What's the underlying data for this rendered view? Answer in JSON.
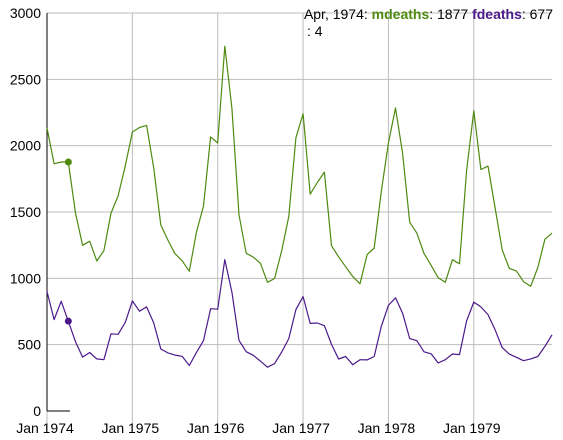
{
  "legend": {
    "date": "Apr, 1974",
    "mdeaths_label": "mdeaths",
    "mdeaths_value": "1877",
    "fdeaths_label": "fdeaths",
    "fdeaths_value": "677",
    "extra_label": ": 4"
  },
  "chart_data": {
    "type": "line",
    "title": "",
    "xlabel": "",
    "ylabel": "",
    "ylim": [
      0,
      3000
    ],
    "xlim": [
      "1974-01",
      "1979-12"
    ],
    "grid": true,
    "x_tick_labels": [
      "Jan 1974",
      "Jan 1975",
      "Jan 1976",
      "Jan 1977",
      "Jan 1978",
      "Jan 1979"
    ],
    "y_tick_labels": [
      "0",
      "500",
      "1000",
      "1500",
      "2000",
      "2500",
      "3000"
    ],
    "x": [
      "1974-01",
      "1974-02",
      "1974-03",
      "1974-04",
      "1974-05",
      "1974-06",
      "1974-07",
      "1974-08",
      "1974-09",
      "1974-10",
      "1974-11",
      "1974-12",
      "1975-01",
      "1975-02",
      "1975-03",
      "1975-04",
      "1975-05",
      "1975-06",
      "1975-07",
      "1975-08",
      "1975-09",
      "1975-10",
      "1975-11",
      "1975-12",
      "1976-01",
      "1976-02",
      "1976-03",
      "1976-04",
      "1976-05",
      "1976-06",
      "1976-07",
      "1976-08",
      "1976-09",
      "1976-10",
      "1976-11",
      "1976-12",
      "1977-01",
      "1977-02",
      "1977-03",
      "1977-04",
      "1977-05",
      "1977-06",
      "1977-07",
      "1977-08",
      "1977-09",
      "1977-10",
      "1977-11",
      "1977-12",
      "1978-01",
      "1978-02",
      "1978-03",
      "1978-04",
      "1978-05",
      "1978-06",
      "1978-07",
      "1978-08",
      "1978-09",
      "1978-10",
      "1978-11",
      "1978-12",
      "1979-01",
      "1979-02",
      "1979-03",
      "1979-04",
      "1979-05",
      "1979-06",
      "1979-07",
      "1979-08",
      "1979-09",
      "1979-10",
      "1979-11",
      "1979-12"
    ],
    "series": [
      {
        "name": "mdeaths",
        "color": "#4e8a10",
        "values": [
          2134,
          1863,
          1877,
          1877,
          1492,
          1249,
          1280,
          1131,
          1209,
          1492,
          1621,
          1846,
          2103,
          2137,
          2153,
          1833,
          1403,
          1288,
          1186,
          1133,
          1053,
          1347,
          1545,
          2066,
          2020,
          2750,
          2283,
          1479,
          1189,
          1160,
          1113,
          970,
          999,
          1208,
          1467,
          2059,
          2240,
          1634,
          1722,
          1801,
          1246,
          1162,
          1087,
          1013,
          959,
          1179,
          1229,
          1655,
          2019,
          2284,
          1942,
          1423,
          1340,
          1187,
          1098,
          1004,
          970,
          1140,
          1110,
          1812,
          2263,
          1820,
          1846,
          1531,
          1215,
          1075,
          1056,
          975,
          940,
          1081,
          1294,
          1341
        ]
      },
      {
        "name": "fdeaths",
        "color": "#4b1a8a",
        "values": [
          901,
          689,
          827,
          677,
          522,
          406,
          441,
          393,
          387,
          582,
          578,
          666,
          830,
          752,
          785,
          664,
          467,
          438,
          421,
          412,
          343,
          440,
          531,
          771,
          767,
          1141,
          896,
          532,
          447,
          420,
          376,
          330,
          357,
          445,
          546,
          764,
          862,
          660,
          663,
          643,
          502,
          392,
          411,
          348,
          387,
          385,
          411,
          638,
          796,
          853,
          737,
          546,
          530,
          446,
          431,
          362,
          387,
          430,
          425,
          679,
          821,
          785,
          727,
          612,
          478,
          429,
          405,
          379,
          393,
          411,
          487,
          574
        ]
      }
    ],
    "highlight": {
      "x": "1974-04",
      "mdeaths": 1877,
      "fdeaths": 677
    }
  }
}
